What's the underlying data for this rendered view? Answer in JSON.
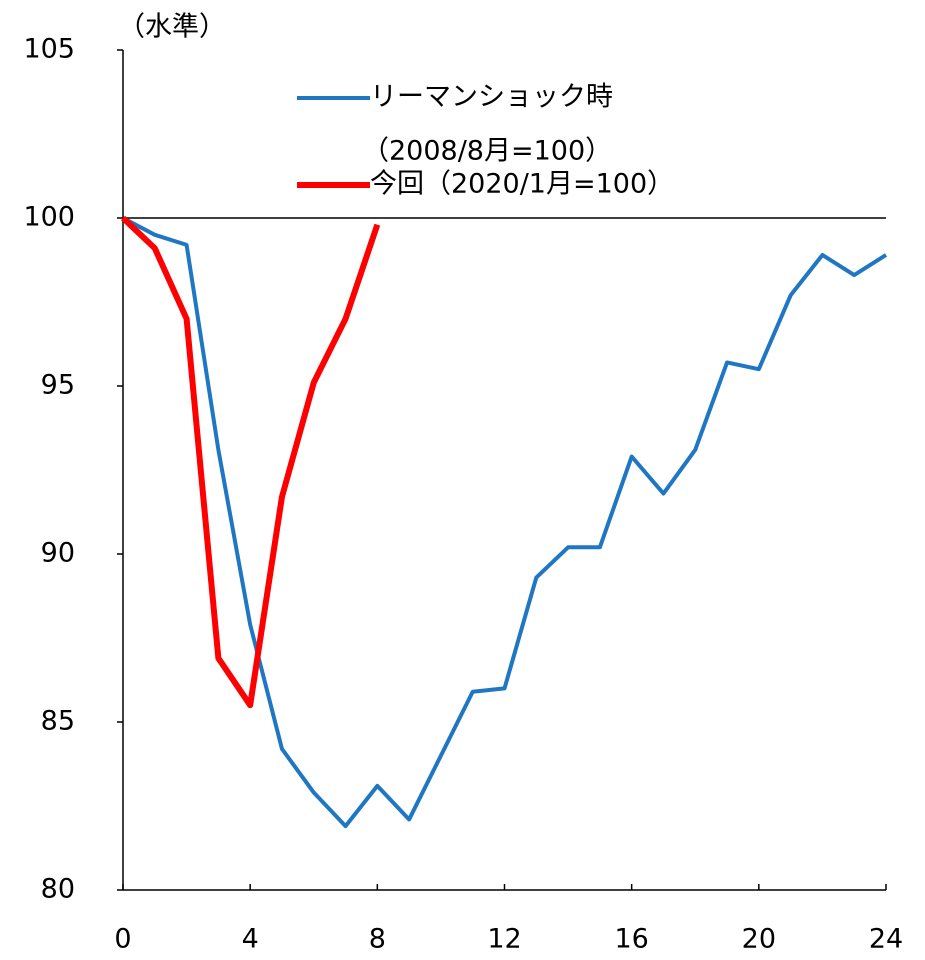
{
  "chart_data": {
    "type": "line",
    "ylabel": "（水準）",
    "x": [
      0,
      1,
      2,
      3,
      4,
      5,
      6,
      7,
      8,
      9,
      10,
      11,
      12,
      13,
      14,
      15,
      16,
      17,
      18,
      19,
      20,
      21,
      22,
      23,
      24
    ],
    "series": [
      {
        "name": "リーマンショック時",
        "name_note": "（2008/8月=100）",
        "color": "#1f77c4",
        "values": [
          100,
          99.5,
          99.2,
          93.1,
          87.9,
          84.2,
          82.9,
          81.9,
          83.1,
          82.1,
          84.0,
          85.9,
          86.0,
          89.3,
          90.2,
          90.2,
          92.9,
          91.8,
          93.1,
          95.7,
          95.5,
          97.7,
          98.9,
          98.3,
          98.9
        ]
      },
      {
        "name": "今回（2020/1月=100）",
        "color": "#ff0000",
        "values": [
          100,
          99.1,
          97.0,
          86.9,
          85.5,
          91.7,
          95.1,
          97.0,
          99.8,
          null,
          null,
          null,
          null,
          null,
          null,
          null,
          null,
          null,
          null,
          null,
          null,
          null,
          null,
          null,
          null
        ]
      }
    ],
    "hline": 100,
    "xlim": [
      0,
      24
    ],
    "xticks": [
      0,
      4,
      8,
      12,
      16,
      20,
      24
    ],
    "ylim": [
      80,
      105
    ],
    "yticks": [
      80,
      85,
      90,
      95,
      100,
      105
    ]
  }
}
